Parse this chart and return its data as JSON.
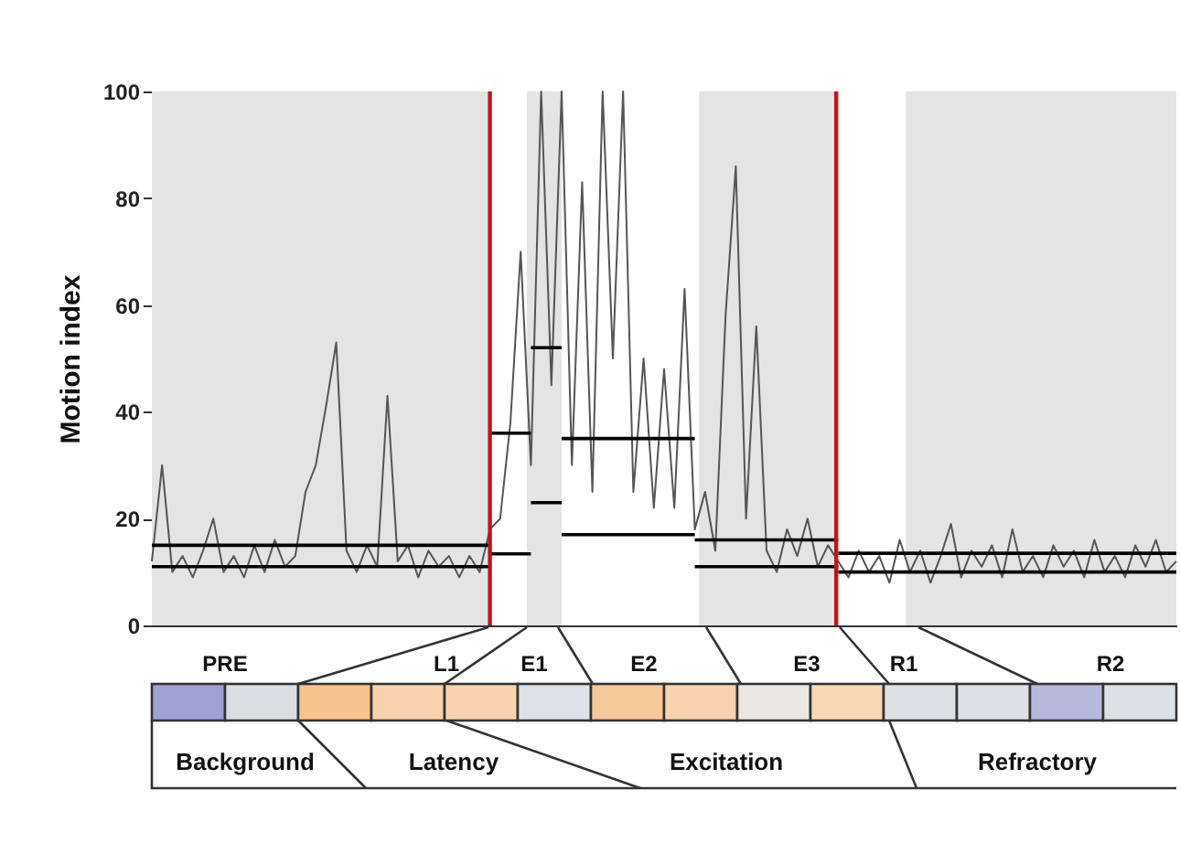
{
  "chart_data": {
    "type": "line",
    "ylabel": "Motion index",
    "ylim": [
      0,
      100
    ],
    "yticks": [
      0,
      20,
      40,
      60,
      80,
      100
    ],
    "tick_labels": "y",
    "grid": false,
    "categories": [
      null,
      null,
      null,
      null,
      null,
      null,
      null,
      null,
      null,
      null,
      null,
      null,
      null,
      null,
      null,
      null,
      null,
      null,
      null,
      null,
      null,
      null,
      null,
      null,
      null,
      null,
      null,
      null,
      null,
      null,
      null,
      null,
      null,
      null,
      null,
      null,
      null,
      null,
      null,
      null,
      null,
      null,
      null,
      null,
      null,
      null,
      null,
      null,
      null,
      null,
      null,
      null,
      null,
      null,
      null,
      null,
      null,
      null,
      null,
      null,
      null,
      null,
      null,
      null,
      null,
      null,
      null,
      null,
      null,
      null,
      null,
      null,
      null,
      null,
      null,
      null,
      null,
      null,
      null,
      null,
      null,
      null,
      null,
      null,
      null,
      null,
      null,
      null,
      null,
      null,
      null,
      null,
      null,
      null,
      null,
      null,
      null,
      null,
      null,
      null,
      null
    ],
    "series": [
      {
        "color": "#555555",
        "values": [
          12,
          30,
          10,
          13,
          9,
          14,
          20,
          10,
          13,
          9,
          15,
          10,
          16,
          11,
          13,
          25,
          30,
          41,
          53,
          14,
          10,
          15,
          11,
          43,
          12,
          15,
          9,
          14,
          11,
          13,
          9,
          13,
          10,
          18,
          20,
          38,
          70,
          30,
          100,
          45,
          100,
          30,
          83,
          25,
          100,
          50,
          100,
          25,
          50,
          22,
          48,
          22,
          63,
          18,
          25,
          14,
          58,
          86,
          20,
          56,
          14,
          10,
          18,
          13,
          20,
          11,
          15,
          12,
          9,
          14,
          10,
          13,
          8,
          16,
          10,
          14,
          8,
          13,
          19,
          9,
          14,
          11,
          15,
          9,
          18,
          10,
          13,
          9,
          15,
          11,
          14,
          9,
          16,
          10,
          13,
          9,
          15,
          11,
          16,
          10,
          12
        ]
      },
      {
        "color": "#000000",
        "values": [
          15,
          15,
          15,
          15,
          15,
          15,
          15,
          15,
          15,
          15,
          15,
          15,
          15,
          15,
          15,
          15,
          15,
          15,
          15,
          15,
          15,
          15,
          15,
          15,
          15,
          15,
          15,
          15,
          15,
          15,
          15,
          15,
          15,
          15,
          null,
          null,
          null,
          null,
          null,
          null,
          null,
          null,
          null,
          null,
          null,
          null,
          null,
          null,
          null,
          null,
          null,
          null,
          null,
          null,
          null,
          null,
          null,
          null,
          null,
          null,
          null,
          null,
          null,
          null,
          null,
          null,
          null,
          null,
          null,
          null,
          null,
          null,
          null,
          null,
          null,
          null,
          null,
          null,
          null,
          null,
          null,
          null,
          null,
          null,
          null,
          null,
          null,
          null,
          null,
          null,
          null,
          null,
          null,
          null,
          null,
          null,
          null,
          null,
          null,
          null,
          null
        ]
      },
      {
        "color": "#000000",
        "values": [
          11,
          11,
          11,
          11,
          11,
          11,
          11,
          11,
          11,
          11,
          11,
          11,
          11,
          11,
          11,
          11,
          11,
          11,
          11,
          11,
          11,
          11,
          11,
          11,
          11,
          11,
          11,
          11,
          11,
          11,
          11,
          11,
          11,
          11,
          null,
          null,
          null,
          null,
          null,
          null,
          null,
          null,
          null,
          null,
          null,
          null,
          null,
          null,
          null,
          null,
          null,
          null,
          null,
          null,
          null,
          null,
          null,
          null,
          null,
          null,
          null,
          null,
          null,
          null,
          null,
          null,
          null,
          null,
          null,
          null,
          null,
          null,
          null,
          null,
          null,
          null,
          null,
          null,
          null,
          null,
          null,
          null,
          null,
          null,
          null,
          null,
          null,
          null,
          null,
          null,
          null,
          null,
          null,
          null,
          null,
          null,
          null,
          null,
          null,
          null,
          null
        ]
      },
      {
        "color": "#000000",
        "values": [
          null,
          null,
          null,
          null,
          null,
          null,
          null,
          null,
          null,
          null,
          null,
          null,
          null,
          null,
          null,
          null,
          null,
          null,
          null,
          null,
          null,
          null,
          null,
          null,
          null,
          null,
          null,
          null,
          null,
          null,
          null,
          null,
          null,
          36,
          36,
          36,
          36,
          36,
          null,
          null,
          null,
          null,
          null,
          null,
          null,
          null,
          null,
          null,
          null,
          null,
          null,
          null,
          null,
          null,
          null,
          null,
          null,
          null,
          null,
          null,
          null,
          null,
          null,
          null,
          null,
          null,
          null,
          null,
          null,
          null,
          null,
          null,
          null,
          null,
          null,
          null,
          null,
          null,
          null,
          null,
          null,
          null,
          null,
          null,
          null,
          null,
          null,
          null,
          null,
          null,
          null,
          null,
          null,
          null,
          null,
          null,
          null,
          null,
          null,
          null,
          null
        ]
      },
      {
        "color": "#000000",
        "values": [
          null,
          null,
          null,
          null,
          null,
          null,
          null,
          null,
          null,
          null,
          null,
          null,
          null,
          null,
          null,
          null,
          null,
          null,
          null,
          null,
          null,
          null,
          null,
          null,
          null,
          null,
          null,
          null,
          null,
          null,
          null,
          null,
          null,
          13.4,
          13.4,
          13.4,
          13.4,
          13.4,
          null,
          null,
          null,
          null,
          null,
          null,
          null,
          null,
          null,
          null,
          null,
          null,
          null,
          null,
          null,
          null,
          null,
          null,
          null,
          null,
          null,
          null,
          null,
          null,
          null,
          null,
          null,
          null,
          null,
          null,
          null,
          null,
          null,
          null,
          null,
          null,
          null,
          null,
          null,
          null,
          null,
          null,
          null,
          null,
          null,
          null,
          null,
          null,
          null,
          null,
          null,
          null,
          null,
          null,
          null,
          null,
          null,
          null,
          null,
          null,
          null,
          null,
          null
        ]
      },
      {
        "color": "#000000",
        "values": [
          null,
          null,
          null,
          null,
          null,
          null,
          null,
          null,
          null,
          null,
          null,
          null,
          null,
          null,
          null,
          null,
          null,
          null,
          null,
          null,
          null,
          null,
          null,
          null,
          null,
          null,
          null,
          null,
          null,
          null,
          null,
          null,
          null,
          null,
          null,
          null,
          null,
          52,
          52,
          52,
          52,
          null,
          null,
          null,
          null,
          null,
          null,
          null,
          null,
          null,
          null,
          null,
          null,
          null,
          null,
          null,
          null,
          null,
          null,
          null,
          null,
          null,
          null,
          null,
          null,
          null,
          null,
          null,
          null,
          null,
          null,
          null,
          null,
          null,
          null,
          null,
          null,
          null,
          null,
          null,
          null,
          null,
          null,
          null,
          null,
          null,
          null,
          null,
          null,
          null,
          null,
          null,
          null,
          null,
          null,
          null,
          null,
          null,
          null,
          null,
          null
        ]
      },
      {
        "color": "#000000",
        "values": [
          null,
          null,
          null,
          null,
          null,
          null,
          null,
          null,
          null,
          null,
          null,
          null,
          null,
          null,
          null,
          null,
          null,
          null,
          null,
          null,
          null,
          null,
          null,
          null,
          null,
          null,
          null,
          null,
          null,
          null,
          null,
          null,
          null,
          null,
          null,
          null,
          null,
          23,
          23,
          23,
          23,
          null,
          null,
          null,
          null,
          null,
          null,
          null,
          null,
          null,
          null,
          null,
          null,
          null,
          null,
          null,
          null,
          null,
          null,
          null,
          null,
          null,
          null,
          null,
          null,
          null,
          null,
          null,
          null,
          null,
          null,
          null,
          null,
          null,
          null,
          null,
          null,
          null,
          null,
          null,
          null,
          null,
          null,
          null,
          null,
          null,
          null,
          null,
          null,
          null,
          null,
          null,
          null,
          null,
          null,
          null,
          null,
          null,
          null,
          null,
          null
        ]
      },
      {
        "color": "#000000",
        "values": [
          null,
          null,
          null,
          null,
          null,
          null,
          null,
          null,
          null,
          null,
          null,
          null,
          null,
          null,
          null,
          null,
          null,
          null,
          null,
          null,
          null,
          null,
          null,
          null,
          null,
          null,
          null,
          null,
          null,
          null,
          null,
          null,
          null,
          null,
          null,
          null,
          null,
          null,
          null,
          null,
          35,
          35,
          35,
          35,
          35,
          35,
          35,
          35,
          35,
          35,
          35,
          35,
          35,
          35,
          null,
          null,
          null,
          null,
          null,
          null,
          null,
          null,
          null,
          null,
          null,
          null,
          null,
          null,
          null,
          null,
          null,
          null,
          null,
          null,
          null,
          null,
          null,
          null,
          null,
          null,
          null,
          null,
          null,
          null,
          null,
          null,
          null,
          null,
          null,
          null,
          null,
          null,
          null,
          null,
          null,
          null,
          null,
          null,
          null,
          null,
          null
        ]
      },
      {
        "color": "#000000",
        "values": [
          null,
          null,
          null,
          null,
          null,
          null,
          null,
          null,
          null,
          null,
          null,
          null,
          null,
          null,
          null,
          null,
          null,
          null,
          null,
          null,
          null,
          null,
          null,
          null,
          null,
          null,
          null,
          null,
          null,
          null,
          null,
          null,
          null,
          null,
          null,
          null,
          null,
          null,
          null,
          null,
          17,
          17,
          17,
          17,
          17,
          17,
          17,
          17,
          17,
          17,
          17,
          17,
          17,
          17,
          null,
          null,
          null,
          null,
          null,
          null,
          null,
          null,
          null,
          null,
          null,
          null,
          null,
          null,
          null,
          null,
          null,
          null,
          null,
          null,
          null,
          null,
          null,
          null,
          null,
          null,
          null,
          null,
          null,
          null,
          null,
          null,
          null,
          null,
          null,
          null,
          null,
          null,
          null,
          null,
          null,
          null,
          null,
          null,
          null,
          null,
          null
        ]
      },
      {
        "color": "#000000",
        "values": [
          null,
          null,
          null,
          null,
          null,
          null,
          null,
          null,
          null,
          null,
          null,
          null,
          null,
          null,
          null,
          null,
          null,
          null,
          null,
          null,
          null,
          null,
          null,
          null,
          null,
          null,
          null,
          null,
          null,
          null,
          null,
          null,
          null,
          null,
          null,
          null,
          null,
          null,
          null,
          null,
          null,
          null,
          null,
          null,
          null,
          null,
          null,
          null,
          null,
          null,
          null,
          null,
          null,
          16,
          16,
          16,
          16,
          16,
          16,
          16,
          16,
          16,
          16,
          16,
          16,
          16,
          16,
          16,
          null,
          null,
          null,
          null,
          null,
          null,
          null,
          null,
          null,
          null,
          null,
          null,
          null,
          null,
          null,
          null,
          null,
          null,
          null,
          null,
          null,
          null,
          null,
          null,
          null,
          null,
          null,
          null,
          null,
          null,
          null,
          null,
          null
        ]
      },
      {
        "color": "#000000",
        "values": [
          null,
          null,
          null,
          null,
          null,
          null,
          null,
          null,
          null,
          null,
          null,
          null,
          null,
          null,
          null,
          null,
          null,
          null,
          null,
          null,
          null,
          null,
          null,
          null,
          null,
          null,
          null,
          null,
          null,
          null,
          null,
          null,
          null,
          null,
          null,
          null,
          null,
          null,
          null,
          null,
          null,
          null,
          null,
          null,
          null,
          null,
          null,
          null,
          null,
          null,
          null,
          null,
          null,
          11,
          11,
          11,
          11,
          11,
          11,
          11,
          11,
          11,
          11,
          11,
          11,
          11,
          11,
          11,
          null,
          null,
          null,
          null,
          null,
          null,
          null,
          null,
          null,
          null,
          null,
          null,
          null,
          null,
          null,
          null,
          null,
          null,
          null,
          null,
          null,
          null,
          null,
          null,
          null,
          null,
          null,
          null,
          null,
          null,
          null,
          null,
          null
        ]
      },
      {
        "color": "#000000",
        "values": [
          null,
          null,
          null,
          null,
          null,
          null,
          null,
          null,
          null,
          null,
          null,
          null,
          null,
          null,
          null,
          null,
          null,
          null,
          null,
          null,
          null,
          null,
          null,
          null,
          null,
          null,
          null,
          null,
          null,
          null,
          null,
          null,
          null,
          null,
          null,
          null,
          null,
          null,
          null,
          null,
          null,
          null,
          null,
          null,
          null,
          null,
          null,
          null,
          null,
          null,
          null,
          null,
          null,
          null,
          null,
          null,
          null,
          null,
          null,
          null,
          null,
          null,
          null,
          null,
          null,
          null,
          null,
          13.5,
          13.5,
          13.5,
          13.5,
          13.5,
          13.5,
          13.5,
          13.5,
          13.5,
          13.5,
          13.5,
          13.5,
          13.5,
          13.5,
          13.5,
          13.5,
          13.5,
          13.5,
          13.5,
          13.5,
          13.5,
          13.5,
          13.5,
          13.5,
          13.5,
          13.5,
          13.5,
          13.5,
          13.5,
          13.5,
          13.5,
          13.5,
          13.5,
          13.5
        ]
      },
      {
        "color": "#000000",
        "values": [
          null,
          null,
          null,
          null,
          null,
          null,
          null,
          null,
          null,
          null,
          null,
          null,
          null,
          null,
          null,
          null,
          null,
          null,
          null,
          null,
          null,
          null,
          null,
          null,
          null,
          null,
          null,
          null,
          null,
          null,
          null,
          null,
          null,
          null,
          null,
          null,
          null,
          null,
          null,
          null,
          null,
          null,
          null,
          null,
          null,
          null,
          null,
          null,
          null,
          null,
          null,
          null,
          null,
          null,
          null,
          null,
          null,
          null,
          null,
          null,
          null,
          null,
          null,
          null,
          null,
          null,
          null,
          10,
          10,
          10,
          10,
          10,
          10,
          10,
          10,
          10,
          10,
          10,
          10,
          10,
          10,
          10,
          10,
          10,
          10,
          10,
          10,
          10,
          10,
          10,
          10,
          10,
          10,
          10,
          10,
          10,
          10,
          10,
          10,
          10,
          10
        ]
      }
    ],
    "annotations": [
      "PRE",
      "L1",
      "E1",
      "E2",
      "E3",
      "R1",
      "R2",
      "Background",
      "Latency",
      "Excitation",
      "Refractory"
    ]
  }
}
